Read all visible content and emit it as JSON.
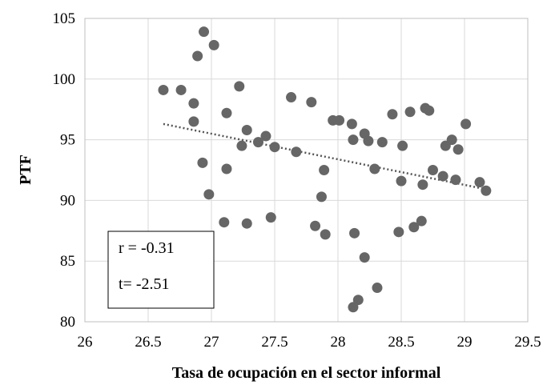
{
  "chart_data": {
    "type": "scatter",
    "title": "",
    "xlabel": "Tasa de ocupación en el sector informal",
    "ylabel": "PTF",
    "xlim": [
      26,
      29.5
    ],
    "ylim": [
      80,
      105
    ],
    "x_ticks": [
      "26",
      "26.5",
      "27",
      "27.5",
      "28",
      "28.5",
      "29",
      "29.5"
    ],
    "y_ticks": [
      "80",
      "85",
      "90",
      "95",
      "100",
      "105"
    ],
    "grid": "vertical and horizontal major gridlines",
    "legend": "none",
    "point_color": "#666666",
    "trendline": {
      "style": "dotted linear",
      "color": "#555555",
      "from": [
        26.62,
        96.3
      ],
      "to": [
        29.18,
        90.9
      ]
    },
    "annotations": {
      "r": "r = -0.31",
      "t": "t= -2.51"
    },
    "points": [
      [
        26.62,
        99.1
      ],
      [
        26.76,
        99.1
      ],
      [
        26.86,
        98.0
      ],
      [
        26.86,
        96.5
      ],
      [
        26.89,
        101.9
      ],
      [
        26.94,
        103.9
      ],
      [
        26.93,
        93.1
      ],
      [
        26.98,
        90.5
      ],
      [
        27.02,
        102.8
      ],
      [
        27.12,
        97.2
      ],
      [
        27.12,
        92.6
      ],
      [
        27.1,
        88.2
      ],
      [
        27.22,
        99.4
      ],
      [
        27.24,
        94.5
      ],
      [
        27.28,
        95.8
      ],
      [
        27.28,
        88.1
      ],
      [
        27.37,
        94.8
      ],
      [
        27.43,
        95.3
      ],
      [
        27.47,
        88.6
      ],
      [
        27.5,
        94.4
      ],
      [
        27.63,
        98.5
      ],
      [
        27.67,
        94.0
      ],
      [
        27.79,
        98.1
      ],
      [
        27.82,
        87.9
      ],
      [
        27.87,
        90.3
      ],
      [
        27.89,
        92.5
      ],
      [
        27.9,
        87.2
      ],
      [
        27.96,
        96.6
      ],
      [
        28.01,
        96.6
      ],
      [
        28.11,
        96.3
      ],
      [
        28.12,
        95.0
      ],
      [
        28.12,
        81.2
      ],
      [
        28.13,
        87.3
      ],
      [
        28.16,
        81.8
      ],
      [
        28.21,
        95.5
      ],
      [
        28.21,
        85.3
      ],
      [
        28.24,
        94.9
      ],
      [
        28.29,
        92.6
      ],
      [
        28.31,
        82.8
      ],
      [
        28.35,
        94.8
      ],
      [
        28.43,
        97.1
      ],
      [
        28.48,
        87.4
      ],
      [
        28.5,
        91.6
      ],
      [
        28.51,
        94.5
      ],
      [
        28.57,
        97.3
      ],
      [
        28.6,
        87.8
      ],
      [
        28.66,
        88.3
      ],
      [
        28.67,
        91.3
      ],
      [
        28.69,
        97.6
      ],
      [
        28.72,
        97.4
      ],
      [
        28.75,
        92.5
      ],
      [
        28.83,
        92.0
      ],
      [
        28.85,
        94.5
      ],
      [
        28.9,
        95.0
      ],
      [
        28.93,
        91.7
      ],
      [
        28.95,
        94.2
      ],
      [
        29.01,
        96.3
      ],
      [
        29.12,
        91.5
      ],
      [
        29.17,
        90.8
      ]
    ]
  }
}
